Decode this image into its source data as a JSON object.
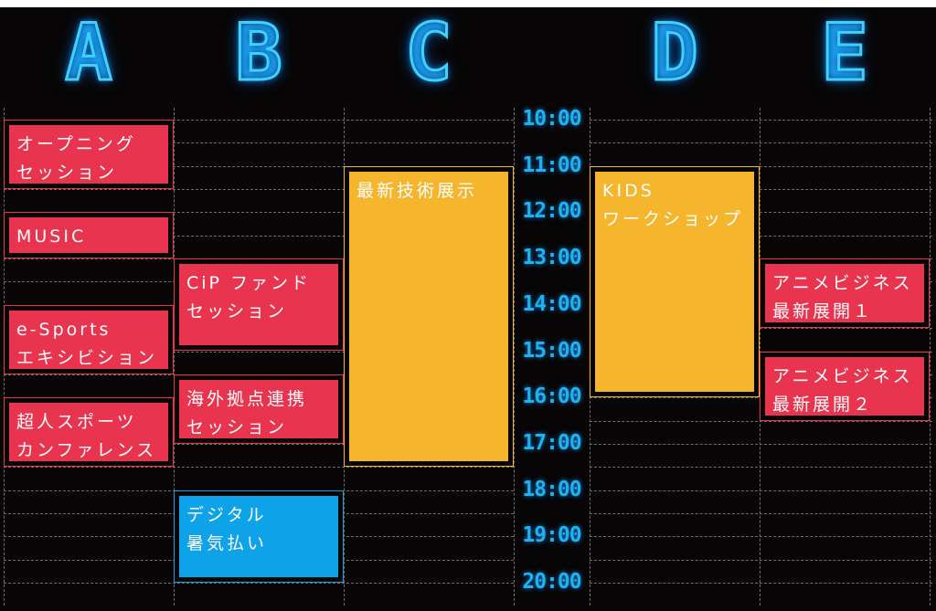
{
  "colors": {
    "red": "#e8344e",
    "orange": "#f5b52c",
    "blue": "#0ea3e8",
    "neon": "#3fd0ff"
  },
  "columns": [
    {
      "key": "A",
      "label": "A"
    },
    {
      "key": "B",
      "label": "B"
    },
    {
      "key": "C",
      "label": "C"
    },
    {
      "key": "D",
      "label": "D"
    },
    {
      "key": "E",
      "label": "E"
    }
  ],
  "times": [
    "10:00",
    "11:00",
    "12:00",
    "13:00",
    "14:00",
    "15:00",
    "16:00",
    "17:00",
    "18:00",
    "19:00",
    "20:00"
  ],
  "events": [
    {
      "col": "A",
      "start": "10:00",
      "end": "11:30",
      "color": "red",
      "lines": [
        "オープニング",
        "セッション"
      ]
    },
    {
      "col": "A",
      "start": "12:00",
      "end": "13:00",
      "color": "red",
      "lines": [
        "MUSIC"
      ]
    },
    {
      "col": "A",
      "start": "14:00",
      "end": "15:30",
      "color": "red",
      "lines": [
        "e-Sports",
        "エキシビション"
      ]
    },
    {
      "col": "A",
      "start": "16:00",
      "end": "17:30",
      "color": "red",
      "lines": [
        "超人スポーツ",
        "カンファレンス"
      ]
    },
    {
      "col": "B",
      "start": "13:00",
      "end": "15:00",
      "color": "red",
      "lines": [
        "CiP ファンド",
        "セッション"
      ]
    },
    {
      "col": "B",
      "start": "15:30",
      "end": "17:00",
      "color": "red",
      "lines": [
        "海外拠点連携",
        "セッション"
      ]
    },
    {
      "col": "B",
      "start": "18:00",
      "end": "20:00",
      "color": "blue",
      "lines": [
        "デジタル",
        "暑気払い"
      ]
    },
    {
      "col": "C",
      "start": "11:00",
      "end": "17:30",
      "color": "orange",
      "lines": [
        "最新技術展示"
      ]
    },
    {
      "col": "D",
      "start": "11:00",
      "end": "16:00",
      "color": "orange",
      "lines": [
        "KIDS",
        "ワークショップ"
      ]
    },
    {
      "col": "E",
      "start": "13:00",
      "end": "14:30",
      "color": "red",
      "lines": [
        "アニメビジネス",
        "最新展開１"
      ]
    },
    {
      "col": "E",
      "start": "15:00",
      "end": "16:30",
      "color": "red",
      "lines": [
        "アニメビジネス",
        "最新展開２"
      ]
    }
  ]
}
